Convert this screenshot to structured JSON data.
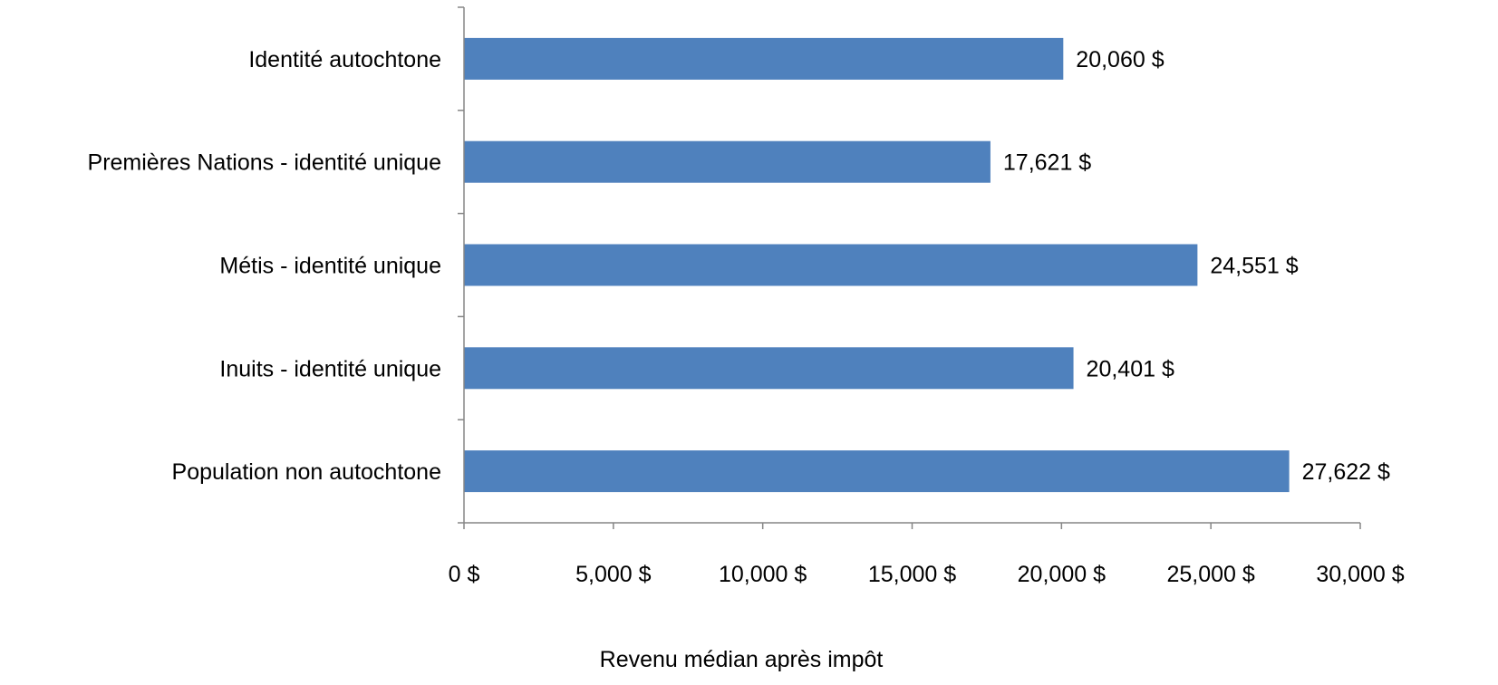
{
  "chart_data": {
    "type": "bar",
    "orientation": "horizontal",
    "categories": [
      "Identité autochtone",
      "Premières Nations - identité unique",
      "Métis - identité unique",
      "Inuits - identité unique",
      "Population non autochtone"
    ],
    "values": [
      20060,
      17621,
      24551,
      20401,
      27622
    ],
    "data_labels": [
      "20,060 $",
      "17,621 $",
      "24,551 $",
      "20,401 $",
      "27,622 $"
    ],
    "xlabel": "Revenu médian après impôt",
    "ylabel": "",
    "xlim": [
      0,
      30000
    ],
    "x_ticks": [
      0,
      5000,
      10000,
      15000,
      20000,
      25000,
      30000
    ],
    "x_tick_labels": [
      "0 $",
      "5,000 $",
      "10,000 $",
      "15,000 $",
      "20,000 $",
      "25,000 $",
      "30,000 $"
    ],
    "bar_color": "#4f81bd",
    "grid": false,
    "legend": "none"
  }
}
